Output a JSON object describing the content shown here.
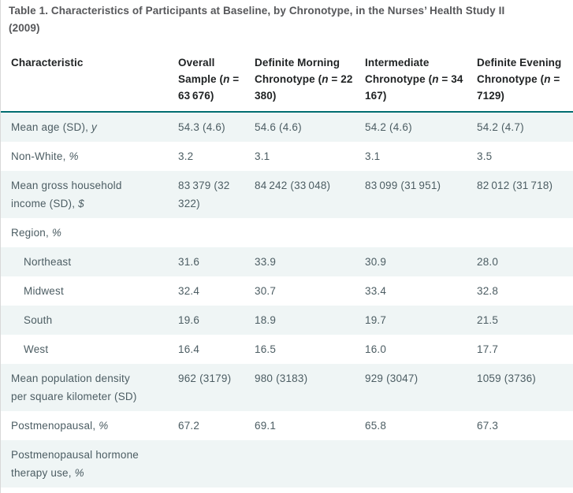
{
  "title": "Table 1. Characteristics of Participants at Baseline, by Chronotype, in the Nurses’ Health Study II\n(2009)",
  "colors": {
    "accent_teal": "#006d70",
    "shaded_row": "#eff5f5",
    "body_text": "#4c5d63",
    "header_text": "#1f2223",
    "title_text": "#56575a"
  },
  "table": {
    "header": {
      "characteristic": "Characteristic",
      "cols": [
        {
          "pre": "Overall Sample (",
          "n": "n",
          "post": " = 63 676)"
        },
        {
          "pre": "Definite Morning Chronotype (",
          "n": "n",
          "post": " = 22 380)"
        },
        {
          "pre": "Intermediate Chronotype (",
          "n": "n",
          "post": " = 34 167)"
        },
        {
          "pre": "Definite Evening Chronotype (",
          "n": "n",
          "post": " = 7129)"
        }
      ]
    },
    "rows": [
      {
        "label": "Mean age (SD), ",
        "label_it": "y",
        "values": [
          "54.3 (4.6)",
          "54.6 (4.6)",
          "54.2 (4.6)",
          "54.2 (4.7)"
        ]
      },
      {
        "label": "Non-White, ",
        "label_it": "%",
        "values": [
          "3.2",
          "3.1",
          "3.1",
          "3.5"
        ]
      },
      {
        "label": "Mean gross household income (SD), ",
        "label_it": "$",
        "values": [
          "83 379 (32 322)",
          "84 242 (33 048)",
          "83 099 (31 951)",
          "82 012 (31 718)"
        ]
      },
      {
        "label": "Region, ",
        "label_it": "%",
        "values": [
          "",
          "",
          "",
          ""
        ]
      },
      {
        "label": "Northeast",
        "values": [
          "31.6",
          "33.9",
          "30.9",
          "28.0"
        ]
      },
      {
        "label": "Midwest",
        "values": [
          "32.4",
          "30.7",
          "33.4",
          "32.8"
        ]
      },
      {
        "label": "South",
        "values": [
          "19.6",
          "18.9",
          "19.7",
          "21.5"
        ]
      },
      {
        "label": "West",
        "values": [
          "16.4",
          "16.5",
          "16.0",
          "17.7"
        ]
      },
      {
        "label": "Mean population density per square kilometer (SD)",
        "values": [
          "962 (3179)",
          "980 (3183)",
          "929 (3047)",
          "1059 (3736)"
        ]
      },
      {
        "label": "Postmenopausal, ",
        "label_it": "%",
        "values": [
          "67.2",
          "69.1",
          "65.8",
          "67.3"
        ]
      },
      {
        "label": "Postmenopausal hormone therapy use, ",
        "label_it": "%",
        "values": [
          "",
          "",
          "",
          ""
        ]
      }
    ]
  }
}
